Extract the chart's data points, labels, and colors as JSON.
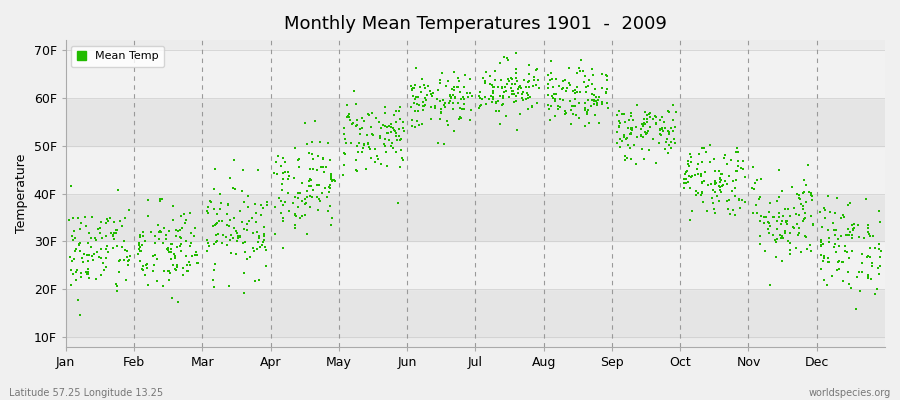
{
  "title": "Monthly Mean Temperatures 1901  -  2009",
  "ylabel": "Temperature",
  "y_ticks": [
    10,
    20,
    30,
    40,
    50,
    60,
    70
  ],
  "y_tick_labels": [
    "10F",
    "20F",
    "30F",
    "40F",
    "50F",
    "60F",
    "70F"
  ],
  "ylim": [
    8,
    72
  ],
  "months": [
    "Jan",
    "Feb",
    "Mar",
    "Apr",
    "May",
    "Jun",
    "Jul",
    "Aug",
    "Sep",
    "Oct",
    "Nov",
    "Dec"
  ],
  "dot_color": "#22bb00",
  "dot_size": 3,
  "bg_color": "#f0f0f0",
  "plot_bg_color": "#ececec",
  "band_color1": "#e5e5e5",
  "band_color2": "#f2f2f2",
  "legend_label": "Mean Temp",
  "bottom_left": "Latitude 57.25 Longitude 13.25",
  "bottom_right": "worldspecies.org",
  "mean_temps_F": [
    28,
    28,
    33,
    42,
    52,
    59,
    62,
    60,
    53,
    43,
    35,
    29
  ],
  "std_temps_F": [
    5,
    5,
    5,
    5,
    4,
    3,
    3,
    3,
    3,
    4,
    5,
    5
  ],
  "n_years": 109,
  "seed": 42
}
